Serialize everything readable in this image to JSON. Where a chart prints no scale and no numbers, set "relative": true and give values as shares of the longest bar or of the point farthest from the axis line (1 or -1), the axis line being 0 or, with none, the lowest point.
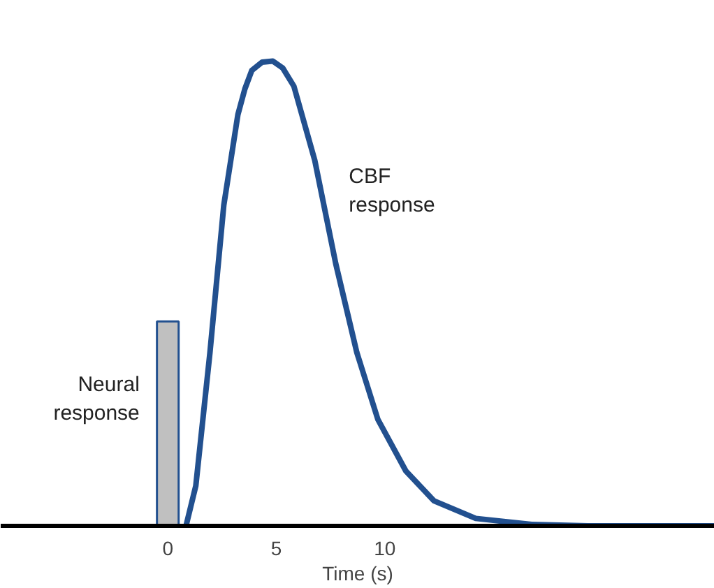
{
  "chart_data": {
    "type": "line",
    "relative": true,
    "xlabel": "Time (s)",
    "xlim": [
      -7.7,
      25.2
    ],
    "xticks": [
      0,
      5,
      10
    ],
    "grid": false,
    "marker": "none",
    "line_style": "solid",
    "series": [
      {
        "name": "Neural response",
        "type": "bar",
        "color": "#c0c0c0",
        "x": [
          0
        ],
        "values": [
          0.44
        ]
      },
      {
        "name": "CBF response",
        "color": "#22508f",
        "x": [
          0.84,
          1.29,
          1.94,
          2.58,
          3.23,
          3.55,
          3.87,
          4.35,
          4.84,
          5.3,
          5.81,
          6.77,
          7.74,
          8.71,
          9.68,
          10.97,
          12.26,
          14.19,
          16.77,
          19.35,
          25.2
        ],
        "values": [
          0,
          0.086,
          0.372,
          0.69,
          0.885,
          0.94,
          0.98,
          0.998,
          1.0,
          0.985,
          0.946,
          0.787,
          0.564,
          0.373,
          0.229,
          0.118,
          0.054,
          0.016,
          0.003,
          0,
          0
        ]
      }
    ]
  }
}
